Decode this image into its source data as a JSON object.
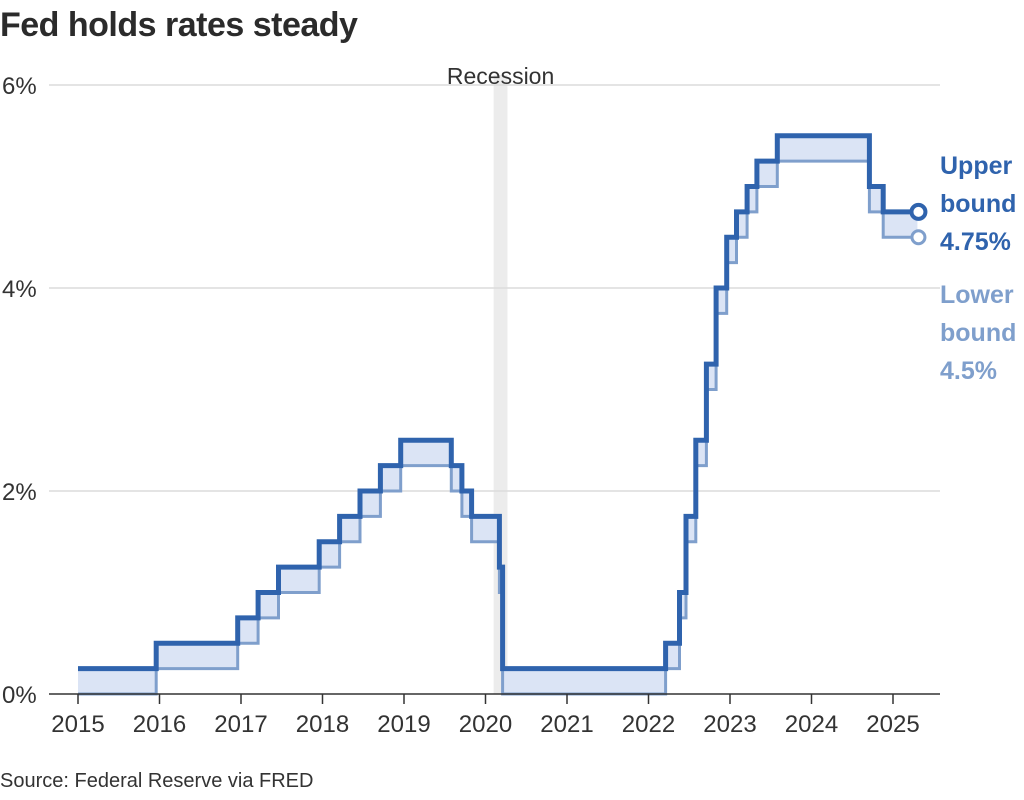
{
  "title": "Fed holds rates steady",
  "source": "Source: Federal Reserve via FRED",
  "colors": {
    "upper": "#2f63ad",
    "lower": "#7f9fcc",
    "band": "#dbe4f5",
    "recession": "#ececec",
    "grid": "#dcdcdc",
    "axis": "#333333"
  },
  "chart_data": {
    "type": "line",
    "xlim": [
      2015,
      2025.52
    ],
    "ylim": [
      0,
      6
    ],
    "x_ticks": [
      2015,
      2016,
      2017,
      2018,
      2019,
      2020,
      2021,
      2022,
      2023,
      2024,
      2025
    ],
    "x_tick_labels": [
      "2015",
      "2016",
      "2017",
      "2018",
      "2019",
      "2020",
      "2021",
      "2022",
      "2023",
      "2024",
      "2025"
    ],
    "y_ticks": [
      0,
      2,
      4,
      6
    ],
    "y_tick_labels": [
      "0%",
      "2%",
      "4%",
      "6%"
    ],
    "grid": true,
    "recession": {
      "label": "Recession",
      "start": 2020.1,
      "end": 2020.27
    },
    "series": [
      {
        "name": "Upper bound",
        "end_value_label": "4.75%",
        "values": [
          [
            2015.0,
            0.25
          ],
          [
            2015.96,
            0.5
          ],
          [
            2016.96,
            0.75
          ],
          [
            2017.21,
            1.0
          ],
          [
            2017.46,
            1.25
          ],
          [
            2017.96,
            1.5
          ],
          [
            2018.21,
            1.75
          ],
          [
            2018.46,
            2.0
          ],
          [
            2018.71,
            2.25
          ],
          [
            2018.96,
            2.5
          ],
          [
            2019.58,
            2.25
          ],
          [
            2019.71,
            2.0
          ],
          [
            2019.83,
            1.75
          ],
          [
            2020.17,
            1.25
          ],
          [
            2020.21,
            0.25
          ],
          [
            2022.21,
            0.5
          ],
          [
            2022.38,
            1.0
          ],
          [
            2022.46,
            1.75
          ],
          [
            2022.58,
            2.5
          ],
          [
            2022.71,
            3.25
          ],
          [
            2022.83,
            4.0
          ],
          [
            2022.96,
            4.5
          ],
          [
            2023.08,
            4.75
          ],
          [
            2023.21,
            5.0
          ],
          [
            2023.33,
            5.25
          ],
          [
            2023.58,
            5.5
          ],
          [
            2024.71,
            5.0
          ],
          [
            2024.88,
            4.75
          ],
          [
            2025.3,
            4.75
          ]
        ]
      },
      {
        "name": "Lower bound",
        "end_value_label": "4.5%",
        "values": [
          [
            2015.0,
            0.0
          ],
          [
            2015.96,
            0.25
          ],
          [
            2016.96,
            0.5
          ],
          [
            2017.21,
            0.75
          ],
          [
            2017.46,
            1.0
          ],
          [
            2017.96,
            1.25
          ],
          [
            2018.21,
            1.5
          ],
          [
            2018.46,
            1.75
          ],
          [
            2018.71,
            2.0
          ],
          [
            2018.96,
            2.25
          ],
          [
            2019.58,
            2.0
          ],
          [
            2019.71,
            1.75
          ],
          [
            2019.83,
            1.5
          ],
          [
            2020.17,
            1.0
          ],
          [
            2020.21,
            0.0
          ],
          [
            2022.21,
            0.25
          ],
          [
            2022.38,
            0.75
          ],
          [
            2022.46,
            1.5
          ],
          [
            2022.58,
            2.25
          ],
          [
            2022.71,
            3.0
          ],
          [
            2022.83,
            3.75
          ],
          [
            2022.96,
            4.25
          ],
          [
            2023.08,
            4.5
          ],
          [
            2023.21,
            4.75
          ],
          [
            2023.33,
            5.0
          ],
          [
            2023.58,
            5.25
          ],
          [
            2024.71,
            4.75
          ],
          [
            2024.88,
            4.5
          ],
          [
            2025.3,
            4.5
          ]
        ]
      }
    ],
    "end_labels": {
      "upper": [
        "Upper",
        "bound",
        "4.75%"
      ],
      "lower": [
        "Lower",
        "bound",
        "4.5%"
      ]
    }
  }
}
